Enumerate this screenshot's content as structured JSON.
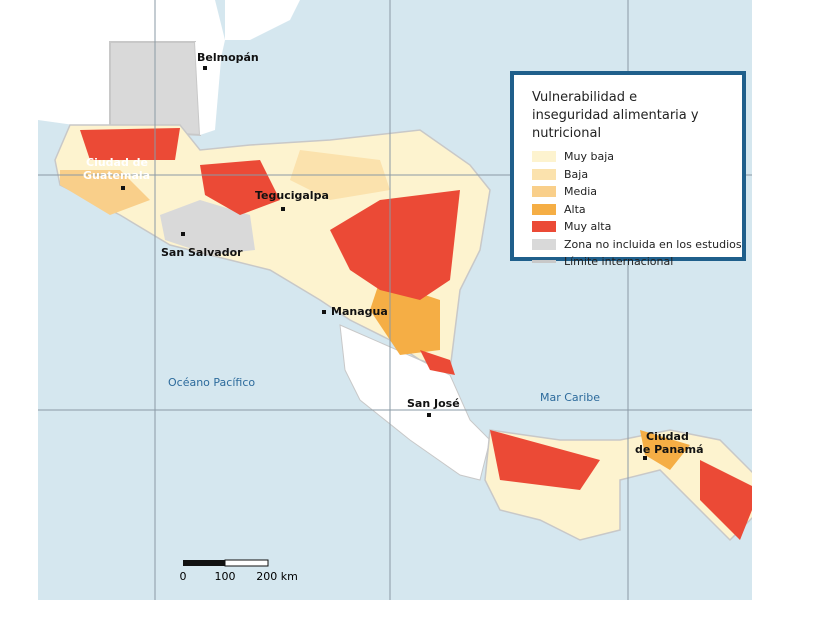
{
  "legend": {
    "title": "Vulnerabilidad e inseguridad alimentaria y nutricional",
    "items": [
      {
        "label": "Muy baja",
        "color": "#fdf3cf"
      },
      {
        "label": "Baja",
        "color": "#fbe2ad"
      },
      {
        "label": "Media",
        "color": "#f9cf8a"
      },
      {
        "label": "Alta",
        "color": "#f5ae45"
      },
      {
        "label": "Muy alta",
        "color": "#eb4a36"
      },
      {
        "label": "Zona no incluida en los estudios",
        "color": "#d9d9d9"
      },
      {
        "label": "Límite internacional",
        "color": "#c8c8c8"
      }
    ]
  },
  "cities": [
    {
      "lines": [
        "Belmopán"
      ]
    },
    {
      "lines": [
        "Ciudad de",
        "Guatemala"
      ]
    },
    {
      "lines": [
        "Tegucigalpa"
      ]
    },
    {
      "lines": [
        "San Salvador"
      ]
    },
    {
      "lines": [
        "Managua"
      ]
    },
    {
      "lines": [
        "San José"
      ]
    },
    {
      "lines": [
        "Ciudad",
        "de Panamá"
      ]
    }
  ],
  "water_labels": [
    "Océano Pacífico",
    "Mar Caribe"
  ],
  "scale_bar": {
    "labels": [
      "0",
      "100",
      "200 km"
    ]
  }
}
